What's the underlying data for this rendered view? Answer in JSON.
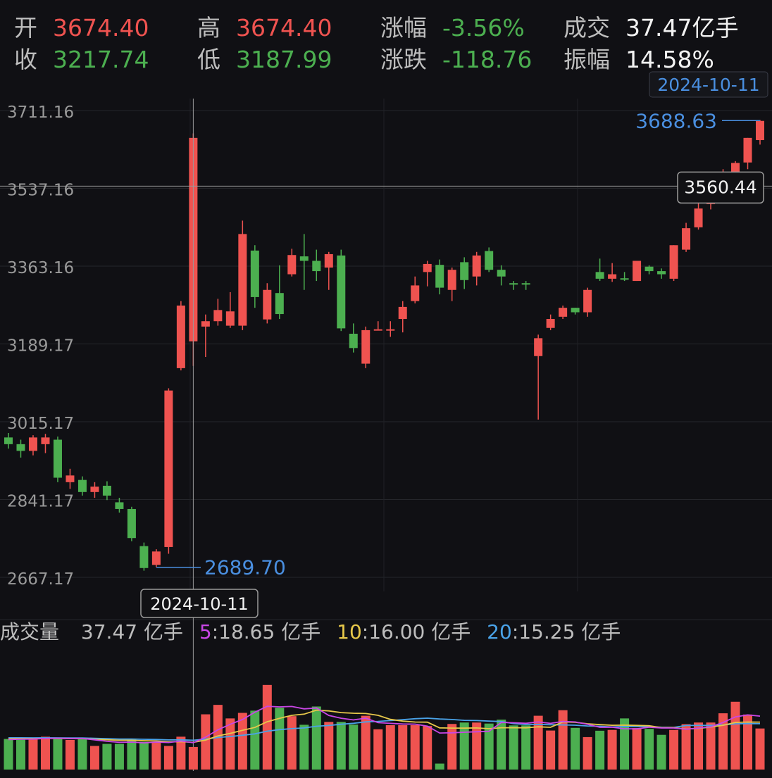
{
  "header": {
    "open_label": "开",
    "open_value": "3674.40",
    "high_label": "高",
    "high_value": "3674.40",
    "pct_label": "涨幅",
    "pct_value": "-3.56%",
    "vol_label": "成交",
    "vol_value": "37.47亿手",
    "close_label": "收",
    "close_value": "3217.74",
    "low_label": "低",
    "low_value": "3187.99",
    "chg_label": "涨跌",
    "chg_value": "-118.76",
    "amp_label": "振幅",
    "amp_value": "14.58%"
  },
  "colors": {
    "up": "#ef5350",
    "down": "#4caf50",
    "ma5": "#c946e6",
    "ma10": "#e7c84a",
    "ma20": "#4aa3e8",
    "accent": "#4a8fe0"
  },
  "chart_data": {
    "type": "candlestick",
    "y_ticks": [
      "3711.16",
      "3537.16",
      "3363.16",
      "3189.17",
      "3015.17",
      "2841.17",
      "2667.17"
    ],
    "ylim": [
      2640,
      3760
    ],
    "crosshair": {
      "price_label": "3560.44",
      "date_label": "2024-10-11",
      "price": 3542
    },
    "max_marker": {
      "value": "3688.63",
      "date": "2024-10-11",
      "price": 3688.63
    },
    "min_marker": {
      "value": "2689.70",
      "price": 2689.7
    },
    "candles": [
      [
        2980,
        2965,
        2990,
        2955
      ],
      [
        2965,
        2950,
        2975,
        2935
      ],
      [
        2950,
        2980,
        2985,
        2940
      ],
      [
        2965,
        2980,
        2988,
        2945
      ],
      [
        2975,
        2890,
        2982,
        2880
      ],
      [
        2880,
        2895,
        2910,
        2865
      ],
      [
        2885,
        2858,
        2893,
        2850
      ],
      [
        2858,
        2870,
        2880,
        2845
      ],
      [
        2872,
        2850,
        2882,
        2840
      ],
      [
        2835,
        2820,
        2845,
        2812
      ],
      [
        2820,
        2755,
        2825,
        2748
      ],
      [
        2737,
        2688,
        2745,
        2682
      ],
      [
        2695,
        2725,
        2730,
        2690
      ],
      [
        2735,
        3085,
        3090,
        2720
      ],
      [
        3135,
        3275,
        3285,
        3130
      ],
      [
        3195,
        3650,
        3660,
        3140
      ],
      [
        3228,
        3240,
        3255,
        3160
      ],
      [
        3240,
        3265,
        3290,
        3230
      ],
      [
        3230,
        3262,
        3305,
        3225
      ],
      [
        3230,
        3435,
        3465,
        3220
      ],
      [
        3398,
        3294,
        3410,
        3270
      ],
      [
        3244,
        3310,
        3325,
        3235
      ],
      [
        3303,
        3256,
        3365,
        3245
      ],
      [
        3345,
        3388,
        3402,
        3340
      ],
      [
        3385,
        3375,
        3435,
        3310
      ],
      [
        3375,
        3352,
        3400,
        3330
      ],
      [
        3360,
        3390,
        3395,
        3310
      ],
      [
        3387,
        3224,
        3400,
        3218
      ],
      [
        3212,
        3180,
        3235,
        3170
      ],
      [
        3145,
        3220,
        3228,
        3135
      ],
      [
        3222,
        3222,
        3240,
        3222
      ],
      [
        3222,
        3222,
        3240,
        3205
      ],
      [
        3245,
        3272,
        3285,
        3215
      ],
      [
        3285,
        3320,
        3340,
        3280
      ],
      [
        3350,
        3368,
        3375,
        3318
      ],
      [
        3366,
        3315,
        3378,
        3300
      ],
      [
        3310,
        3355,
        3360,
        3285
      ],
      [
        3372,
        3332,
        3383,
        3312
      ],
      [
        3340,
        3387,
        3395,
        3320
      ],
      [
        3397,
        3355,
        3405,
        3350
      ],
      [
        3355,
        3340,
        3365,
        3320
      ],
      [
        3325,
        3323,
        3330,
        3310
      ],
      [
        3325,
        3323,
        3330,
        3310
      ],
      [
        3162,
        3202,
        3210,
        3020
      ],
      [
        3225,
        3245,
        3255,
        3220
      ],
      [
        3250,
        3270,
        3275,
        3245
      ],
      [
        3270,
        3260,
        3270,
        3255
      ],
      [
        3260,
        3310,
        3315,
        3250
      ],
      [
        3350,
        3335,
        3380,
        3330
      ],
      [
        3335,
        3345,
        3370,
        3328
      ],
      [
        3336,
        3333,
        3350,
        3330
      ],
      [
        3330,
        3375,
        3375,
        3330
      ],
      [
        3362,
        3352,
        3365,
        3345
      ],
      [
        3352,
        3345,
        3358,
        3335
      ],
      [
        3335,
        3410,
        3410,
        3330
      ],
      [
        3400,
        3448,
        3460,
        3395
      ],
      [
        3450,
        3492,
        3515,
        3445
      ],
      [
        3502,
        3510,
        3525,
        3490
      ],
      [
        3530,
        3555,
        3580,
        3515
      ],
      [
        3560,
        3594,
        3598,
        3545
      ],
      [
        3595,
        3650,
        3650,
        3580
      ],
      [
        3645,
        3688,
        3690,
        3635
      ]
    ],
    "volume_max": 60,
    "volume": [
      14.9,
      15.5,
      14.9,
      16.0,
      14.9,
      14.4,
      15.5,
      11.5,
      12.5,
      12.5,
      14.9,
      13.5,
      13.5,
      11.5,
      16.0,
      11.0,
      26.9,
      31.5,
      24.9,
      27.6,
      28.7,
      41.2,
      30.1,
      26.0,
      21.8,
      30.7,
      23.2,
      23.2,
      21.9,
      26.2,
      19.6,
      21.6,
      21.6,
      21.6,
      21.2,
      2.9,
      22.2,
      22.9,
      22.9,
      22.4,
      24.3,
      21.5,
      21.5,
      26.2,
      19.0,
      28.9,
      20.3,
      15.8,
      18.9,
      19.3,
      24.9,
      20.2,
      19.8,
      16.9,
      19.3,
      22.1,
      22.9,
      22.9,
      27.4,
      33.0,
      26.8,
      20.0
    ],
    "volume_labels": {
      "title": "成交量",
      "current": "37.47 亿手",
      "ma5_key": "5",
      "ma5_value": ":18.65 亿手",
      "ma10_key": "10",
      "ma10_value": ":16.00 亿手",
      "ma20_key": "20",
      "ma20_value": ":15.25 亿手"
    }
  }
}
